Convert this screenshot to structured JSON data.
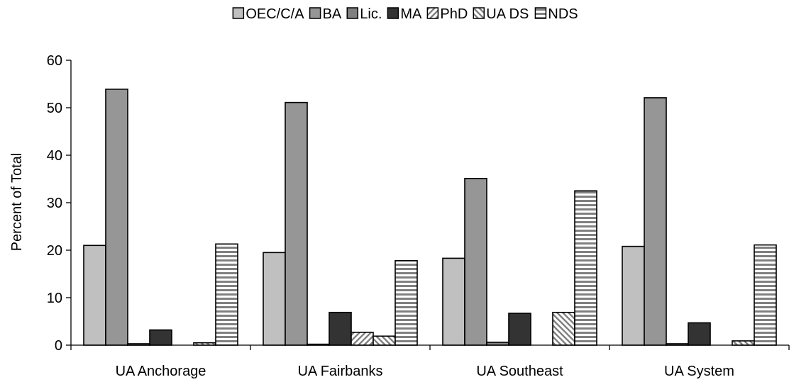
{
  "chart_data": {
    "type": "bar",
    "categories": [
      "UA Anchorage",
      "UA Fairbanks",
      "UA Southeast",
      "UA System"
    ],
    "series": [
      {
        "name": "OEC/C/A",
        "values": [
          21.0,
          19.5,
          18.3,
          20.8
        ],
        "color": "#c0c0c0",
        "pattern": "solid"
      },
      {
        "name": "BA",
        "values": [
          53.9,
          51.1,
          35.1,
          52.1
        ],
        "color": "#969696",
        "pattern": "solid"
      },
      {
        "name": "Lic.",
        "values": [
          0.3,
          0.2,
          0.6,
          0.3
        ],
        "color": "#808080",
        "pattern": "solid"
      },
      {
        "name": "MA",
        "values": [
          3.2,
          6.9,
          6.7,
          4.7
        ],
        "color": "#333333",
        "pattern": "solid"
      },
      {
        "name": "PhD",
        "values": [
          0.0,
          2.7,
          0.0,
          0.0
        ],
        "color": "#ffffff",
        "pattern": "diagonal-up"
      },
      {
        "name": "UA DS",
        "values": [
          0.5,
          1.9,
          6.9,
          0.9
        ],
        "color": "#ffffff",
        "pattern": "diagonal-down"
      },
      {
        "name": "NDS",
        "values": [
          21.3,
          17.8,
          32.5,
          21.1
        ],
        "color": "#ffffff",
        "pattern": "horizontal"
      }
    ],
    "title": "",
    "xlabel": "",
    "ylabel": "Percent of Total",
    "ylim": [
      0,
      60
    ],
    "yticks": [
      "0",
      "10",
      "20",
      "30",
      "40",
      "50",
      "60"
    ],
    "grid": false,
    "legend_position": "top"
  }
}
